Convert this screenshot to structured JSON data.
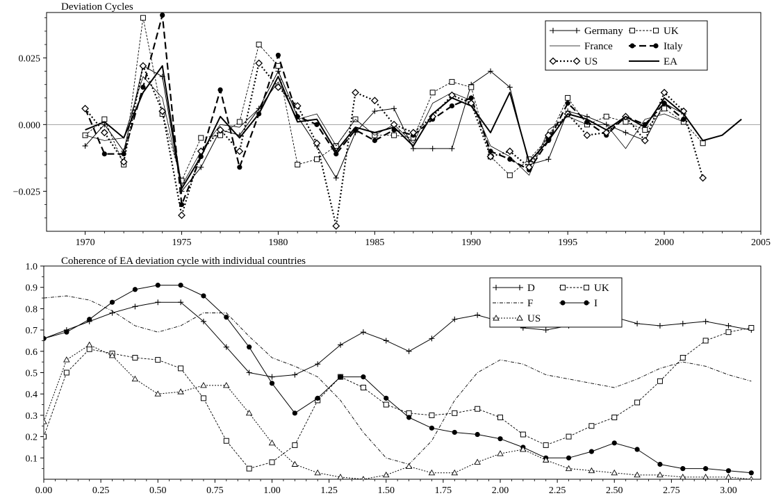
{
  "chart_data": [
    {
      "type": "line",
      "title": "Deviation Cycles",
      "xlabel": "",
      "ylabel": "",
      "xlim": [
        1968,
        2005
      ],
      "ylim": [
        -0.04,
        0.042
      ],
      "xticks": [
        1970,
        1975,
        1980,
        1985,
        1990,
        1995,
        2000,
        2005
      ],
      "xtick_labels": [
        "1970",
        "1975",
        "1980",
        "1985",
        "1990",
        "1995",
        "2000",
        "2005"
      ],
      "yticks": [
        -0.025,
        0.0,
        0.025
      ],
      "ytick_labels": [
        "−0.025",
        "0.000",
        "0.025"
      ],
      "zero_line": true,
      "grid": false,
      "legend_position": "top-right",
      "series": [
        {
          "name": "Germany",
          "style": "plus",
          "x": [
            1970,
            1971,
            1972,
            1973,
            1974,
            1975,
            1976,
            1977,
            1978,
            1979,
            1980,
            1981,
            1982,
            1983,
            1984,
            1985,
            1986,
            1987,
            1988,
            1989,
            1990,
            1991,
            1992,
            1993,
            1994,
            1995,
            1996,
            1997,
            1998,
            1999,
            2000,
            2001
          ],
          "y": [
            -0.008,
            0.0,
            -0.01,
            0.022,
            0.018,
            -0.025,
            -0.016,
            -0.002,
            -0.004,
            0.006,
            0.02,
            0.003,
            -0.008,
            -0.02,
            -0.003,
            0.005,
            0.006,
            -0.009,
            -0.009,
            -0.009,
            0.015,
            0.02,
            0.014,
            -0.015,
            -0.013,
            0.005,
            0.003,
            0.0,
            -0.003,
            -0.006,
            0.008,
            0.004
          ]
        },
        {
          "name": "UK",
          "style": "open-square",
          "x": [
            1970,
            1971,
            1972,
            1973,
            1974,
            1975,
            1976,
            1977,
            1978,
            1979,
            1980,
            1981,
            1982,
            1983,
            1984,
            1985,
            1986,
            1987,
            1988,
            1989,
            1990,
            1991,
            1992,
            1993,
            1994,
            1995,
            1996,
            1997,
            1998,
            1999,
            2000,
            2001,
            2002
          ],
          "y": [
            -0.004,
            0.002,
            -0.015,
            0.04,
            0.004,
            -0.021,
            -0.005,
            -0.004,
            0.001,
            0.03,
            0.022,
            -0.015,
            -0.013,
            -0.008,
            0.002,
            -0.004,
            -0.004,
            -0.005,
            0.012,
            0.016,
            0.014,
            -0.012,
            -0.019,
            -0.013,
            -0.005,
            0.01,
            0.0,
            0.003,
            0.001,
            -0.002,
            0.006,
            0.001,
            -0.007
          ]
        },
        {
          "name": "France",
          "style": "thin",
          "x": [
            1970,
            1971,
            1972,
            1973,
            1974,
            1975,
            1976,
            1977,
            1978,
            1979,
            1980,
            1981,
            1982,
            1983,
            1984,
            1985,
            1986,
            1987,
            1988,
            1989,
            1990,
            1991,
            1992,
            1993,
            1994,
            1995,
            1996,
            1997,
            1998,
            1999,
            2000,
            2001
          ],
          "y": [
            -0.004,
            -0.006,
            -0.005,
            0.018,
            0.01,
            -0.023,
            -0.01,
            0.0,
            -0.001,
            0.006,
            0.016,
            0.002,
            0.004,
            -0.008,
            0.002,
            -0.004,
            0.0,
            -0.007,
            0.008,
            0.012,
            0.009,
            -0.008,
            -0.012,
            -0.019,
            -0.002,
            0.003,
            0.0,
            0.0,
            -0.009,
            0.002,
            0.004,
            0.001
          ]
        },
        {
          "name": "Italy",
          "style": "filled-circle-dashed",
          "x": [
            1970,
            1971,
            1972,
            1973,
            1974,
            1975,
            1976,
            1977,
            1978,
            1979,
            1980,
            1981,
            1982,
            1983,
            1984,
            1985,
            1986,
            1987,
            1988,
            1989,
            1990,
            1991,
            1992,
            1993,
            1994,
            1995,
            1996,
            1997,
            1998,
            1999,
            2000,
            2001
          ],
          "y": [
            0.006,
            -0.011,
            -0.011,
            0.014,
            0.041,
            -0.03,
            -0.012,
            0.013,
            -0.016,
            0.004,
            0.026,
            0.003,
            0.0,
            -0.011,
            -0.002,
            -0.006,
            -0.002,
            -0.004,
            0.002,
            0.007,
            0.01,
            -0.01,
            -0.013,
            -0.017,
            -0.006,
            0.008,
            0.001,
            -0.004,
            0.003,
            0.0,
            0.008,
            0.002
          ]
        },
        {
          "name": "US",
          "style": "open-diamond-dotted",
          "x": [
            1970,
            1971,
            1972,
            1973,
            1974,
            1975,
            1976,
            1977,
            1978,
            1979,
            1980,
            1981,
            1982,
            1983,
            1984,
            1985,
            1986,
            1987,
            1988,
            1989,
            1990,
            1991,
            1992,
            1993,
            1994,
            1995,
            1996,
            1997,
            1998,
            1999,
            2000,
            2001,
            2002
          ],
          "y": [
            0.006,
            -0.003,
            -0.014,
            0.022,
            0.005,
            -0.034,
            -0.01,
            -0.002,
            -0.01,
            0.023,
            0.014,
            0.007,
            -0.007,
            -0.038,
            0.012,
            0.009,
            0.0,
            -0.003,
            0.003,
            0.011,
            0.008,
            -0.012,
            -0.01,
            -0.016,
            -0.004,
            0.004,
            -0.004,
            -0.003,
            0.003,
            -0.006,
            0.012,
            0.005,
            -0.02
          ]
        },
        {
          "name": "EA",
          "style": "thick",
          "x": [
            1970,
            1971,
            1972,
            1973,
            1974,
            1975,
            1976,
            1977,
            1978,
            1979,
            1980,
            1981,
            1982,
            1983,
            1984,
            1985,
            1986,
            1987,
            1988,
            1989,
            1990,
            1991,
            1992,
            1993,
            1994,
            1995,
            1996,
            1997,
            1998,
            1999,
            2000,
            2001,
            2002,
            2003,
            2004
          ],
          "y": [
            -0.002,
            0.001,
            -0.005,
            0.012,
            0.022,
            -0.024,
            -0.012,
            0.003,
            -0.005,
            0.004,
            0.018,
            0.001,
            0.002,
            -0.01,
            -0.001,
            -0.003,
            -0.001,
            -0.008,
            0.004,
            0.01,
            0.007,
            -0.003,
            0.012,
            -0.014,
            -0.006,
            0.004,
            0.002,
            -0.002,
            0.003,
            -0.001,
            0.01,
            0.004,
            -0.006,
            -0.004,
            0.002
          ]
        }
      ]
    },
    {
      "type": "line",
      "title": "Coherence of EA deviation cycle with individual countries",
      "xlabel": "",
      "ylabel": "",
      "xlim": [
        0.0,
        3.1416
      ],
      "ylim": [
        0.0,
        1.0
      ],
      "xticks": [
        0.0,
        0.25,
        0.5,
        0.75,
        1.0,
        1.25,
        1.5,
        1.75,
        2.0,
        2.25,
        2.5,
        2.75,
        3.0
      ],
      "xtick_labels": [
        "0.00",
        "0.25",
        "0.50",
        "0.75",
        "1.00",
        "1.25",
        "1.50",
        "1.75",
        "2.00",
        "2.25",
        "2.50",
        "2.75",
        "3.00"
      ],
      "yticks": [
        0.1,
        0.2,
        0.3,
        0.4,
        0.5,
        0.6,
        0.7,
        0.8,
        0.9,
        1.0
      ],
      "ytick_labels": [
        "0.1",
        "0.2",
        "0.3",
        "0.4",
        "0.5",
        "0.6",
        "0.7",
        "0.8",
        "0.9",
        "1.0"
      ],
      "grid": false,
      "legend_position": "top-right",
      "series": [
        {
          "name": "D",
          "style": "plus",
          "x": [
            0.0,
            0.1,
            0.2,
            0.3,
            0.4,
            0.5,
            0.6,
            0.7,
            0.8,
            0.9,
            1.0,
            1.1,
            1.2,
            1.3,
            1.4,
            1.5,
            1.6,
            1.7,
            1.8,
            1.9,
            2.0,
            2.1,
            2.2,
            2.3,
            2.4,
            2.5,
            2.6,
            2.7,
            2.8,
            2.9,
            3.0,
            3.1
          ],
          "y": [
            0.66,
            0.7,
            0.74,
            0.78,
            0.81,
            0.83,
            0.83,
            0.74,
            0.62,
            0.5,
            0.48,
            0.49,
            0.54,
            0.63,
            0.69,
            0.65,
            0.6,
            0.66,
            0.75,
            0.77,
            0.74,
            0.71,
            0.7,
            0.72,
            0.75,
            0.76,
            0.73,
            0.72,
            0.73,
            0.74,
            0.72,
            0.7
          ]
        },
        {
          "name": "UK",
          "style": "open-square",
          "x": [
            0.0,
            0.1,
            0.2,
            0.3,
            0.4,
            0.5,
            0.6,
            0.7,
            0.8,
            0.9,
            1.0,
            1.1,
            1.2,
            1.3,
            1.4,
            1.5,
            1.6,
            1.7,
            1.8,
            1.9,
            2.0,
            2.1,
            2.2,
            2.3,
            2.4,
            2.5,
            2.6,
            2.7,
            2.8,
            2.9,
            3.0,
            3.1
          ],
          "y": [
            0.2,
            0.5,
            0.61,
            0.59,
            0.57,
            0.56,
            0.52,
            0.38,
            0.18,
            0.05,
            0.08,
            0.16,
            0.37,
            0.48,
            0.43,
            0.35,
            0.31,
            0.3,
            0.31,
            0.33,
            0.29,
            0.21,
            0.16,
            0.2,
            0.25,
            0.29,
            0.36,
            0.46,
            0.57,
            0.65,
            0.69,
            0.71
          ]
        },
        {
          "name": "F",
          "style": "dash-dot",
          "x": [
            0.0,
            0.1,
            0.2,
            0.3,
            0.4,
            0.5,
            0.6,
            0.7,
            0.8,
            0.9,
            1.0,
            1.1,
            1.2,
            1.3,
            1.4,
            1.5,
            1.6,
            1.7,
            1.8,
            1.9,
            2.0,
            2.1,
            2.2,
            2.3,
            2.4,
            2.5,
            2.6,
            2.7,
            2.8,
            2.9,
            3.0,
            3.1
          ],
          "y": [
            0.85,
            0.86,
            0.84,
            0.79,
            0.72,
            0.69,
            0.72,
            0.78,
            0.78,
            0.67,
            0.57,
            0.53,
            0.48,
            0.37,
            0.22,
            0.1,
            0.07,
            0.18,
            0.37,
            0.5,
            0.56,
            0.54,
            0.49,
            0.47,
            0.45,
            0.43,
            0.47,
            0.52,
            0.55,
            0.53,
            0.49,
            0.46
          ]
        },
        {
          "name": "I",
          "style": "filled-circle",
          "x": [
            0.0,
            0.1,
            0.2,
            0.3,
            0.4,
            0.5,
            0.6,
            0.7,
            0.8,
            0.9,
            1.0,
            1.1,
            1.2,
            1.3,
            1.4,
            1.5,
            1.6,
            1.7,
            1.8,
            1.9,
            2.0,
            2.1,
            2.2,
            2.3,
            2.4,
            2.5,
            2.6,
            2.7,
            2.8,
            2.9,
            3.0,
            3.1
          ],
          "y": [
            0.66,
            0.69,
            0.75,
            0.83,
            0.89,
            0.91,
            0.91,
            0.86,
            0.76,
            0.62,
            0.45,
            0.31,
            0.38,
            0.48,
            0.48,
            0.38,
            0.29,
            0.24,
            0.22,
            0.21,
            0.19,
            0.15,
            0.1,
            0.1,
            0.13,
            0.17,
            0.14,
            0.07,
            0.05,
            0.05,
            0.04,
            0.03
          ]
        },
        {
          "name": "US",
          "style": "open-triangle-dotted",
          "x": [
            0.0,
            0.1,
            0.2,
            0.3,
            0.4,
            0.5,
            0.6,
            0.7,
            0.8,
            0.9,
            1.0,
            1.1,
            1.2,
            1.3,
            1.4,
            1.5,
            1.6,
            1.7,
            1.8,
            1.9,
            2.0,
            2.1,
            2.2,
            2.3,
            2.4,
            2.5,
            2.6,
            2.7,
            2.8,
            2.9,
            3.0,
            3.1
          ],
          "y": [
            0.27,
            0.56,
            0.63,
            0.58,
            0.47,
            0.4,
            0.41,
            0.44,
            0.44,
            0.31,
            0.17,
            0.07,
            0.03,
            0.01,
            0.0,
            0.02,
            0.06,
            0.03,
            0.03,
            0.08,
            0.12,
            0.14,
            0.09,
            0.05,
            0.04,
            0.03,
            0.02,
            0.02,
            0.01,
            0.01,
            0.01,
            0.0
          ]
        }
      ]
    }
  ]
}
